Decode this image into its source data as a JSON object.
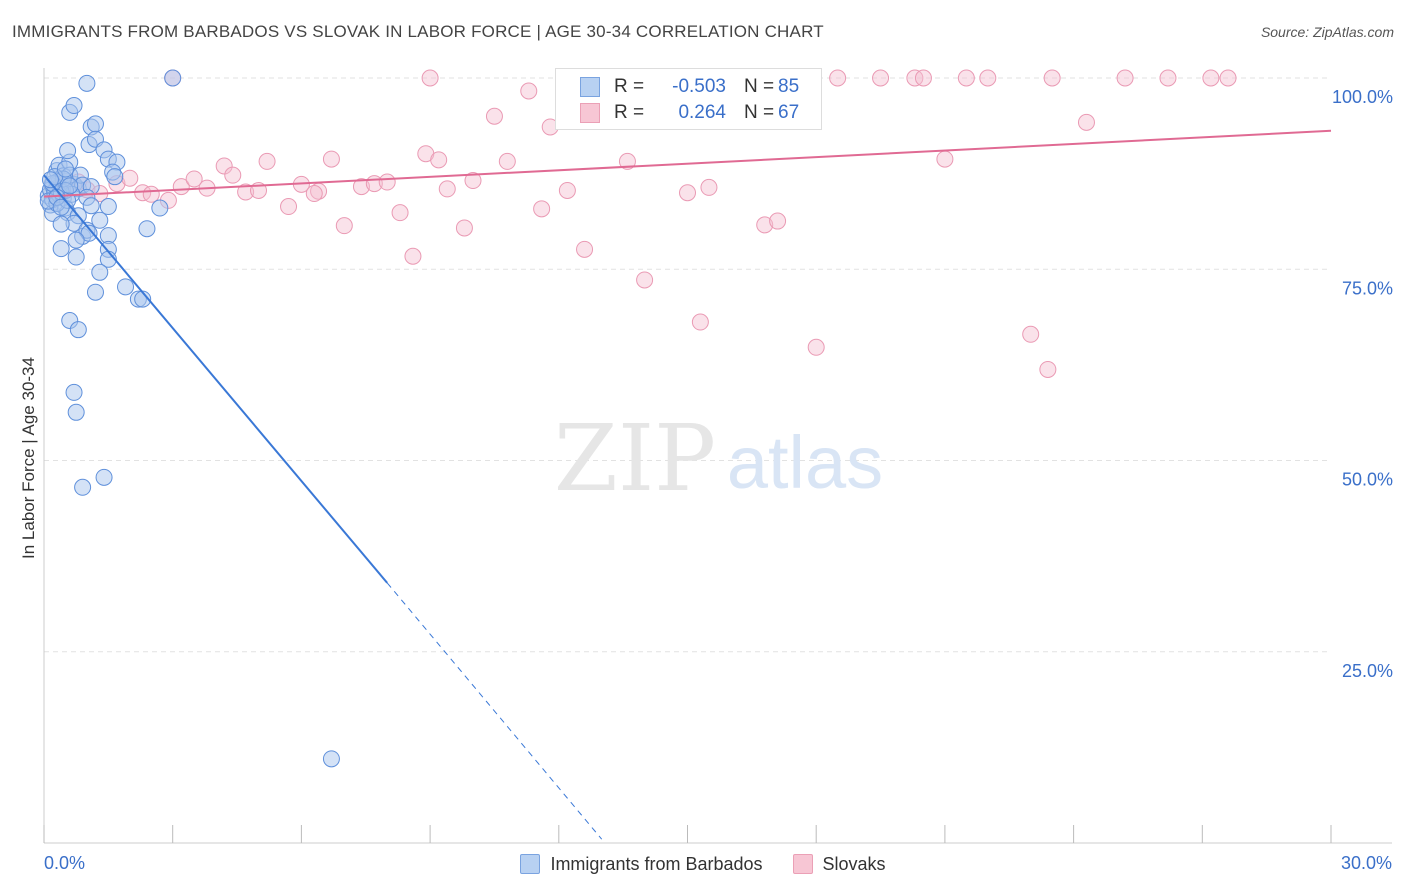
{
  "title": "IMMIGRANTS FROM BARBADOS VS SLOVAK IN LABOR FORCE | AGE 30-34 CORRELATION CHART",
  "source": "Source: ZipAtlas.com",
  "watermark": {
    "zip": "ZIP",
    "atlas": "atlas"
  },
  "stats": {
    "blue": {
      "r_label": "R =",
      "r_value": "-0.503",
      "n_label": "N =",
      "n_value": "85"
    },
    "pink": {
      "r_label": "R =",
      "r_value": "0.264",
      "n_label": "N =",
      "n_value": "67"
    }
  },
  "colors": {
    "blue": "#3a78d6",
    "blue_fill": "#a9c6ee",
    "pink": "#e06a93",
    "pink_fill": "#f5bfd0",
    "axis_text": "#3a6fc9",
    "grid": "#e2e2e2"
  },
  "chart_data": {
    "type": "scatter",
    "title": "IMMIGRANTS FROM BARBADOS VS SLOVAK IN LABOR FORCE | AGE 30-34 CORRELATION CHART",
    "xlabel": "",
    "ylabel": "In Labor Force | Age 30-34",
    "xlim": [
      0,
      30
    ],
    "ylim": [
      0,
      100
    ],
    "x_tick_labels": [
      "0.0%",
      "30.0%"
    ],
    "y_tick_labels": [
      {
        "value": 25,
        "label": "25.0%"
      },
      {
        "value": 50,
        "label": "50.0%"
      },
      {
        "value": 75,
        "label": "75.0%"
      },
      {
        "value": 100,
        "label": "100.0%"
      }
    ],
    "legend": [
      "Immigrants from Barbados",
      "Slovaks"
    ],
    "series": [
      {
        "name": "Immigrants from Barbados",
        "color": "#3a78d6",
        "trend": {
          "x0": 0,
          "y0": 87.3,
          "x1": 8.0,
          "y1": 34.0,
          "dashed_to_x": 13.0,
          "dashed_to_y": 0.5
        },
        "points": [
          [
            0.1,
            84.6
          ],
          [
            0.15,
            83.4
          ],
          [
            0.2,
            85.9
          ],
          [
            0.2,
            82.3
          ],
          [
            0.25,
            84.9
          ],
          [
            0.3,
            85.6
          ],
          [
            0.35,
            86.4
          ],
          [
            0.3,
            87.9
          ],
          [
            0.4,
            86.0
          ],
          [
            0.45,
            84.3
          ],
          [
            0.5,
            83.0
          ],
          [
            0.55,
            82.4
          ],
          [
            0.35,
            88.6
          ],
          [
            0.6,
            89.0
          ],
          [
            0.55,
            90.5
          ],
          [
            0.3,
            86.4
          ],
          [
            0.5,
            86.5
          ],
          [
            0.7,
            86.1
          ],
          [
            0.45,
            87.2
          ],
          [
            0.6,
            87.3
          ],
          [
            0.8,
            85.5
          ],
          [
            0.85,
            87.3
          ],
          [
            0.9,
            86.0
          ],
          [
            1.1,
            85.8
          ],
          [
            0.65,
            84.8
          ],
          [
            1.0,
            84.4
          ],
          [
            1.1,
            83.3
          ],
          [
            0.8,
            82.0
          ],
          [
            1.5,
            83.2
          ],
          [
            0.7,
            81.0
          ],
          [
            0.4,
            80.9
          ],
          [
            0.9,
            79.3
          ],
          [
            1.0,
            80.1
          ],
          [
            1.05,
            79.7
          ],
          [
            1.3,
            81.4
          ],
          [
            0.75,
            78.8
          ],
          [
            1.5,
            79.4
          ],
          [
            0.4,
            77.7
          ],
          [
            0.75,
            76.6
          ],
          [
            1.5,
            77.6
          ],
          [
            1.5,
            76.3
          ],
          [
            1.3,
            74.6
          ],
          [
            1.2,
            72.0
          ],
          [
            1.9,
            72.7
          ],
          [
            2.2,
            71.1
          ],
          [
            2.3,
            71.1
          ],
          [
            2.4,
            80.3
          ],
          [
            2.7,
            83.0
          ],
          [
            1.05,
            91.3
          ],
          [
            1.1,
            93.6
          ],
          [
            1.2,
            94.0
          ],
          [
            1.2,
            92.0
          ],
          [
            1.4,
            90.6
          ],
          [
            1.5,
            89.4
          ],
          [
            1.7,
            89.0
          ],
          [
            1.6,
            87.7
          ],
          [
            1.65,
            87.1
          ],
          [
            0.6,
            95.5
          ],
          [
            0.7,
            96.4
          ],
          [
            1.0,
            99.3
          ],
          [
            3.0,
            100.0
          ],
          [
            0.6,
            68.3
          ],
          [
            0.8,
            67.1
          ],
          [
            0.7,
            58.9
          ],
          [
            0.75,
            56.3
          ],
          [
            0.9,
            46.5
          ],
          [
            1.4,
            47.8
          ],
          [
            6.7,
            11.0
          ],
          [
            0.15,
            85.4
          ],
          [
            0.2,
            84.1
          ],
          [
            0.25,
            85.2
          ],
          [
            0.3,
            83.6
          ],
          [
            0.35,
            84.8
          ],
          [
            0.4,
            85.1
          ],
          [
            0.45,
            86.8
          ],
          [
            0.5,
            85.3
          ],
          [
            0.55,
            84.0
          ],
          [
            0.2,
            86.2
          ],
          [
            0.25,
            87.1
          ],
          [
            0.1,
            83.9
          ],
          [
            0.15,
            86.7
          ],
          [
            0.3,
            84.4
          ],
          [
            0.4,
            83.1
          ],
          [
            0.5,
            88.1
          ],
          [
            0.6,
            85.9
          ]
        ]
      },
      {
        "name": "Slovaks",
        "color": "#e06a93",
        "trend": {
          "x0": 0,
          "y0": 84.5,
          "x1": 30,
          "y1": 93.1
        },
        "points": [
          [
            0.5,
            85.9
          ],
          [
            1.0,
            85.4
          ],
          [
            1.7,
            86.2
          ],
          [
            2.0,
            86.9
          ],
          [
            2.3,
            85.0
          ],
          [
            2.5,
            84.8
          ],
          [
            2.9,
            84.0
          ],
          [
            3.2,
            85.8
          ],
          [
            3.5,
            86.8
          ],
          [
            3.8,
            85.6
          ],
          [
            4.2,
            88.5
          ],
          [
            4.4,
            87.3
          ],
          [
            4.7,
            85.1
          ],
          [
            5.0,
            85.3
          ],
          [
            5.2,
            89.1
          ],
          [
            5.7,
            83.2
          ],
          [
            6.0,
            86.1
          ],
          [
            6.4,
            85.2
          ],
          [
            6.7,
            89.4
          ],
          [
            7.0,
            80.7
          ],
          [
            7.4,
            85.8
          ],
          [
            7.7,
            86.2
          ],
          [
            8.0,
            86.4
          ],
          [
            8.3,
            82.4
          ],
          [
            8.6,
            76.7
          ],
          [
            8.9,
            90.1
          ],
          [
            9.2,
            89.3
          ],
          [
            9.4,
            85.5
          ],
          [
            9.8,
            80.4
          ],
          [
            10.0,
            86.6
          ],
          [
            10.5,
            95.0
          ],
          [
            10.8,
            89.1
          ],
          [
            11.3,
            98.3
          ],
          [
            11.6,
            82.9
          ],
          [
            11.8,
            93.6
          ],
          [
            12.2,
            85.3
          ],
          [
            12.3,
            100.0
          ],
          [
            12.6,
            77.6
          ],
          [
            13.6,
            89.1
          ],
          [
            14.0,
            73.6
          ],
          [
            15.0,
            85.0
          ],
          [
            15.3,
            68.1
          ],
          [
            15.5,
            85.7
          ],
          [
            16.5,
            100.0
          ],
          [
            16.8,
            80.8
          ],
          [
            17.1,
            81.3
          ],
          [
            18.0,
            64.8
          ],
          [
            19.5,
            100.0
          ],
          [
            20.3,
            100.0
          ],
          [
            20.5,
            100.0
          ],
          [
            21.0,
            89.4
          ],
          [
            21.5,
            100.0
          ],
          [
            23.0,
            66.5
          ],
          [
            23.4,
            61.9
          ],
          [
            23.5,
            100.0
          ],
          [
            24.3,
            94.2
          ],
          [
            25.2,
            100.0
          ],
          [
            26.2,
            100.0
          ],
          [
            27.2,
            100.0
          ],
          [
            27.6,
            100.0
          ],
          [
            0.8,
            86.4
          ],
          [
            1.3,
            84.9
          ],
          [
            3.0,
            100.0
          ],
          [
            6.3,
            84.9
          ],
          [
            9.0,
            100.0
          ],
          [
            18.5,
            100.0
          ],
          [
            22.0,
            100.0
          ]
        ]
      }
    ]
  }
}
